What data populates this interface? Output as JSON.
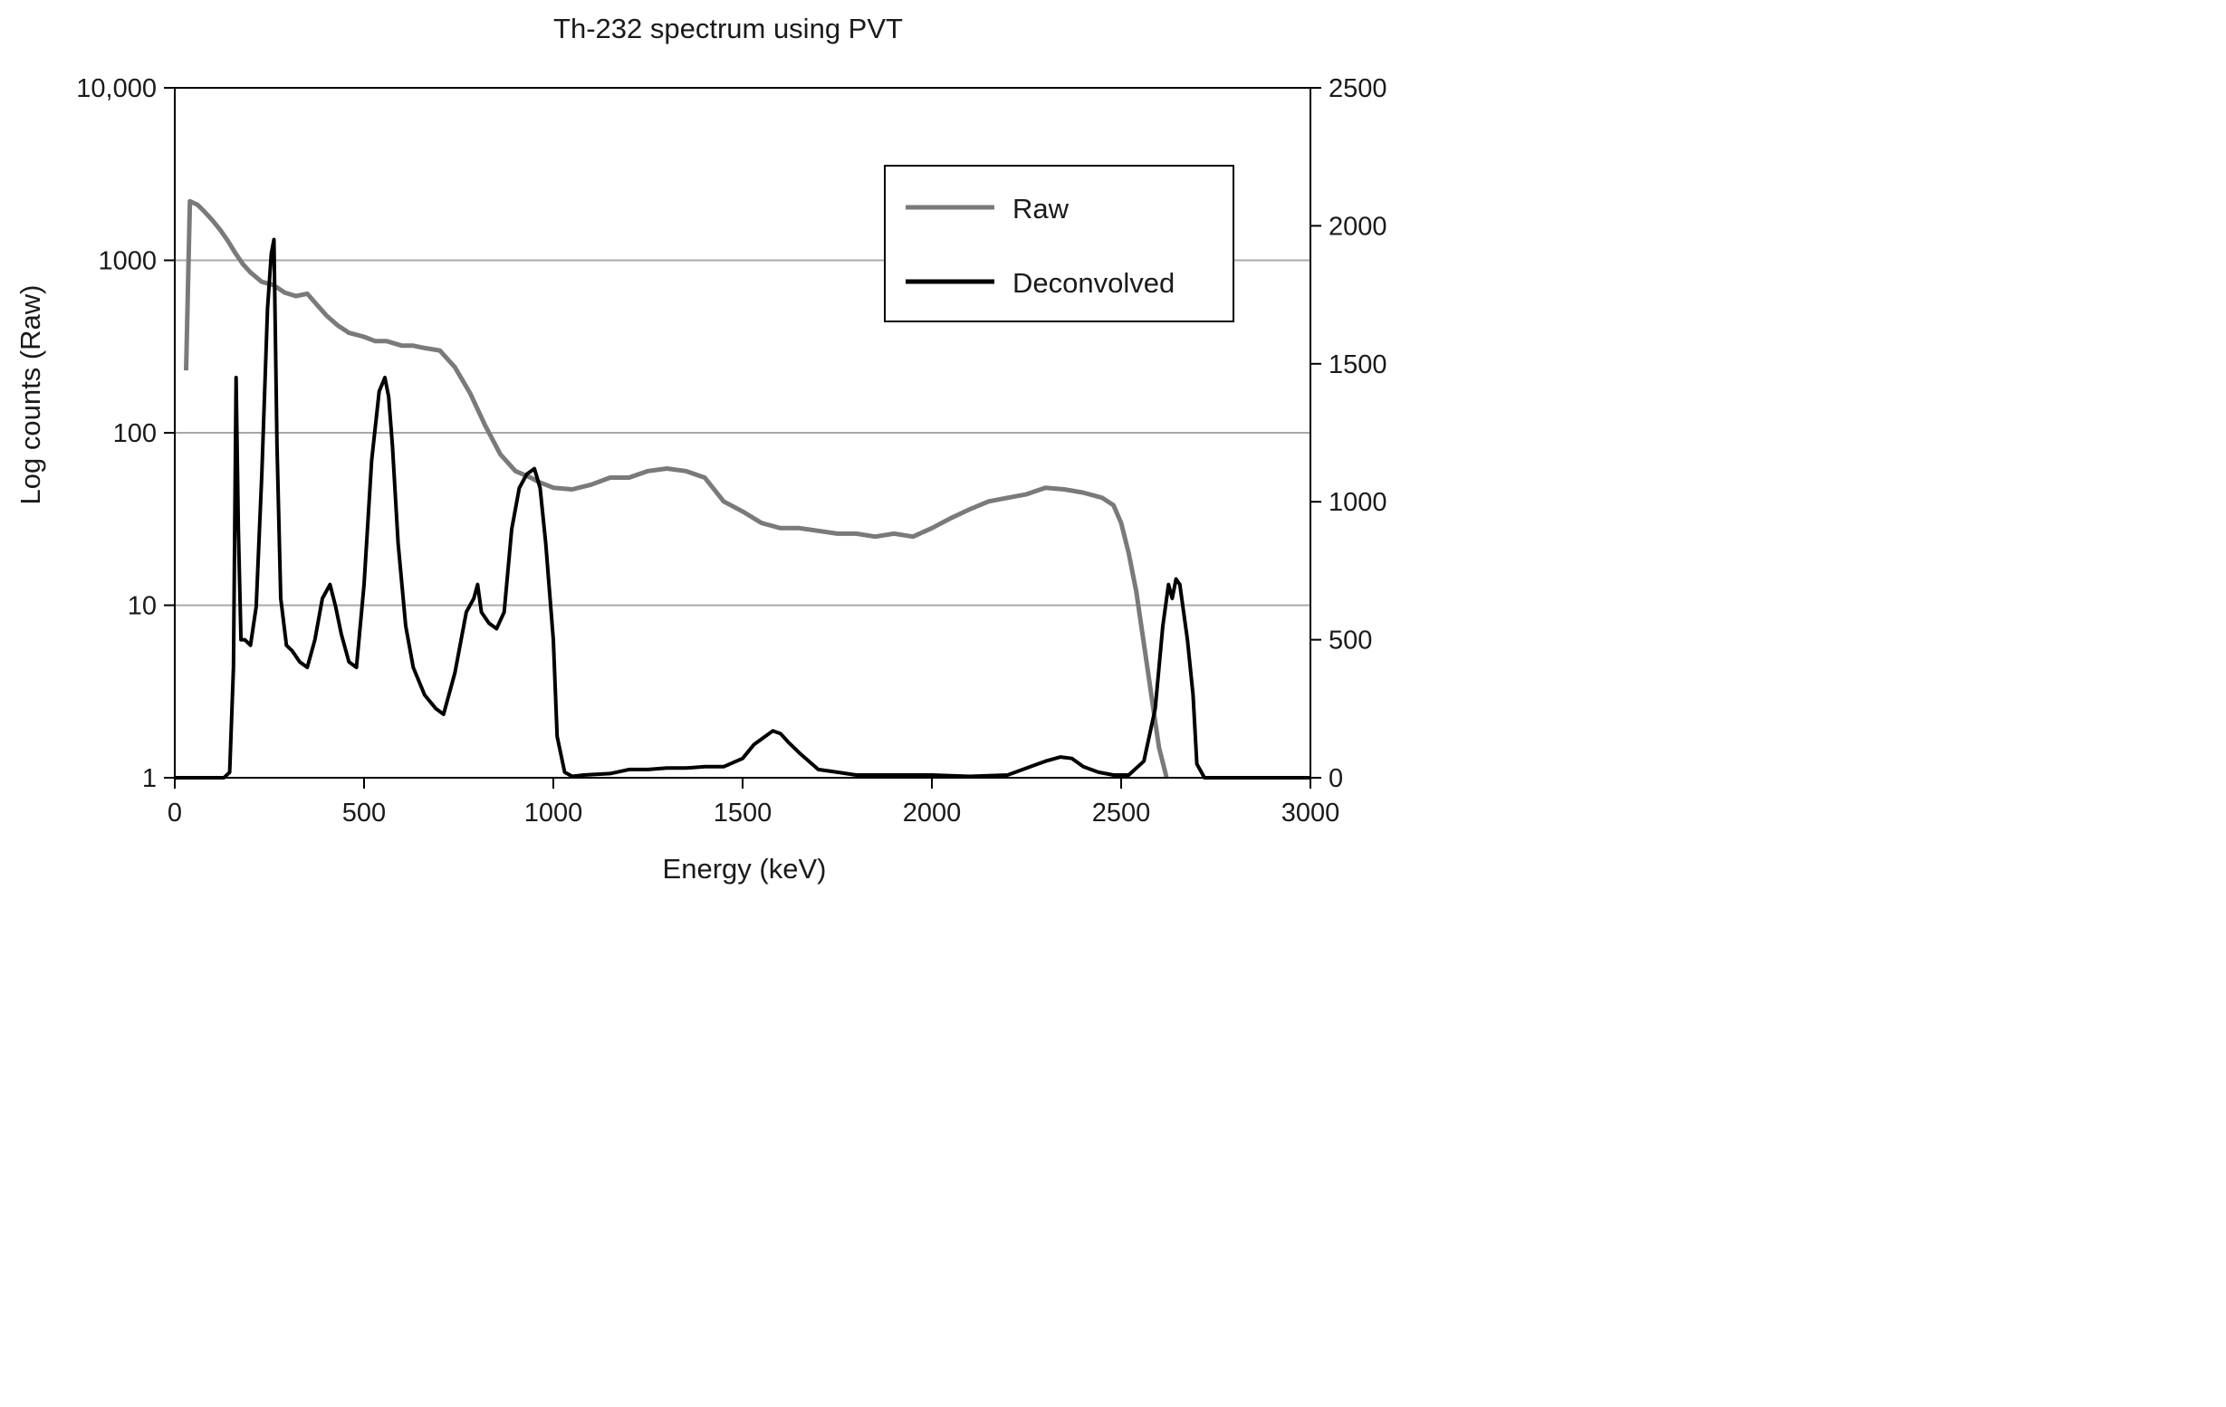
{
  "chart_data": {
    "type": "line",
    "title": "Th-232 spectrum using PVT",
    "xlabel": "Energy (keV)",
    "ylabel": "Log counts (Raw)",
    "y2label": "",
    "xlim": [
      0,
      3000
    ],
    "ylim": [
      1,
      10000
    ],
    "y_scale": "log",
    "y2lim": [
      0,
      2500
    ],
    "y2_scale": "linear",
    "x_ticks": [
      {
        "value": 0,
        "label": "0"
      },
      {
        "value": 500,
        "label": "500"
      },
      {
        "value": 1000,
        "label": "1000"
      },
      {
        "value": 1500,
        "label": "1500"
      },
      {
        "value": 2000,
        "label": "2000"
      },
      {
        "value": 2500,
        "label": "2500"
      },
      {
        "value": 3000,
        "label": "3000"
      }
    ],
    "y_ticks": [
      {
        "value": 1,
        "label": "1"
      },
      {
        "value": 10,
        "label": "10"
      },
      {
        "value": 100,
        "label": "100"
      },
      {
        "value": 1000,
        "label": "1000"
      },
      {
        "value": 10000,
        "label": "10,000"
      }
    ],
    "y2_ticks": [
      {
        "value": 0,
        "label": "0"
      },
      {
        "value": 500,
        "label": "500"
      },
      {
        "value": 1000,
        "label": "1000"
      },
      {
        "value": 1500,
        "label": "1500"
      },
      {
        "value": 2000,
        "label": "2000"
      },
      {
        "value": 2500,
        "label": "2500"
      }
    ],
    "grid": "horizontal major lines on left axis",
    "legend_position": "top-right",
    "series": [
      {
        "name": "Raw",
        "axis": "left",
        "color": "#7a7a7a",
        "x": [
          30,
          40,
          60,
          80,
          100,
          120,
          140,
          160,
          180,
          200,
          230,
          260,
          290,
          320,
          350,
          370,
          400,
          430,
          460,
          500,
          530,
          560,
          600,
          630,
          660,
          700,
          740,
          780,
          820,
          860,
          900,
          940,
          960,
          1000,
          1050,
          1100,
          1150,
          1200,
          1250,
          1300,
          1350,
          1400,
          1450,
          1500,
          1550,
          1600,
          1650,
          1700,
          1750,
          1800,
          1850,
          1900,
          1950,
          2000,
          2050,
          2100,
          2150,
          2200,
          2250,
          2300,
          2350,
          2400,
          2450,
          2480,
          2500,
          2520,
          2540,
          2560,
          2580,
          2600,
          2620
        ],
        "values": [
          230,
          2200,
          2100,
          1900,
          1700,
          1500,
          1300,
          1100,
          950,
          850,
          750,
          720,
          650,
          620,
          640,
          570,
          480,
          420,
          380,
          360,
          340,
          340,
          320,
          320,
          310,
          300,
          240,
          170,
          110,
          75,
          60,
          55,
          52,
          48,
          47,
          50,
          55,
          55,
          60,
          62,
          60,
          55,
          40,
          35,
          30,
          28,
          28,
          27,
          26,
          26,
          25,
          26,
          25,
          28,
          32,
          36,
          40,
          42,
          44,
          48,
          47,
          45,
          42,
          38,
          30,
          20,
          12,
          6,
          3,
          1.5,
          1
        ]
      },
      {
        "name": "Deconvolved",
        "axis": "right",
        "color": "#000000",
        "x": [
          0,
          130,
          145,
          155,
          162,
          168,
          175,
          185,
          200,
          215,
          230,
          245,
          255,
          262,
          270,
          280,
          295,
          310,
          330,
          350,
          370,
          390,
          410,
          425,
          440,
          460,
          480,
          500,
          520,
          540,
          555,
          565,
          575,
          590,
          610,
          630,
          660,
          690,
          710,
          740,
          770,
          790,
          800,
          810,
          830,
          850,
          870,
          890,
          910,
          930,
          950,
          965,
          980,
          1000,
          1010,
          1030,
          1050,
          1080,
          1150,
          1200,
          1250,
          1300,
          1350,
          1400,
          1450,
          1500,
          1530,
          1560,
          1580,
          1600,
          1620,
          1650,
          1700,
          1750,
          1800,
          1900,
          2000,
          2100,
          2200,
          2300,
          2340,
          2370,
          2400,
          2440,
          2480,
          2520,
          2560,
          2590,
          2610,
          2625,
          2635,
          2645,
          2655,
          2665,
          2675,
          2690,
          2700,
          2720,
          3000
        ],
        "values": [
          0,
          0,
          20,
          400,
          1450,
          900,
          500,
          500,
          480,
          620,
          1100,
          1700,
          1900,
          1950,
          1200,
          650,
          480,
          460,
          420,
          400,
          500,
          650,
          700,
          620,
          520,
          420,
          400,
          700,
          1150,
          1400,
          1450,
          1380,
          1200,
          850,
          550,
          400,
          300,
          250,
          230,
          380,
          600,
          650,
          700,
          600,
          560,
          540,
          600,
          900,
          1050,
          1100,
          1120,
          1050,
          850,
          500,
          150,
          20,
          5,
          10,
          15,
          30,
          30,
          35,
          35,
          40,
          40,
          70,
          120,
          150,
          170,
          160,
          130,
          90,
          30,
          20,
          10,
          10,
          10,
          5,
          10,
          60,
          75,
          70,
          40,
          20,
          10,
          10,
          60,
          250,
          550,
          700,
          650,
          720,
          700,
          600,
          500,
          300,
          50,
          0,
          0
        ]
      }
    ]
  }
}
